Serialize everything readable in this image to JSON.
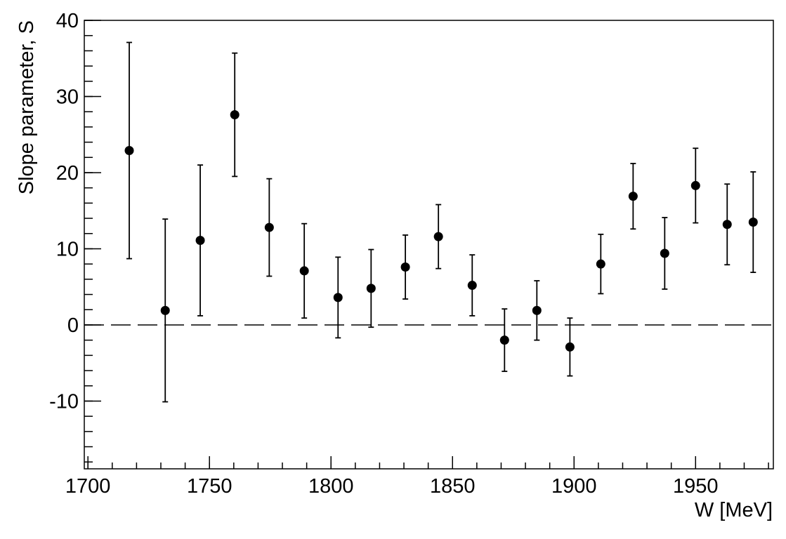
{
  "chart_data": {
    "type": "scatter",
    "x_label": "W [MeV]",
    "y_label": "Slope parameter, S",
    "x": [
      1717,
      1731.8,
      1746.2,
      1760.4,
      1774.6,
      1789,
      1802.9,
      1816.5,
      1830.6,
      1844.2,
      1858.1,
      1871.4,
      1884.7,
      1898.3,
      1911,
      1924.3,
      1937.3,
      1950,
      1963,
      1973.7
    ],
    "values": [
      22.9,
      1.9,
      11.1,
      27.6,
      12.8,
      7.1,
      3.6,
      4.8,
      7.6,
      11.6,
      5.2,
      -2.0,
      1.9,
      -2.9,
      8.0,
      16.9,
      9.4,
      18.3,
      13.2,
      13.5
    ],
    "errors": [
      14.2,
      12,
      9.9,
      8.1,
      6.4,
      6.2,
      5.3,
      5.1,
      4.2,
      4.2,
      4.0,
      4.1,
      3.9,
      3.8,
      3.9,
      4.3,
      4.7,
      4.9,
      5.3,
      6.6
    ],
    "color": "#000000",
    "reference_line": 0,
    "xlim": [
      1698.5,
      1982
    ],
    "ylim": [
      -18.9,
      40
    ],
    "xticks": [
      1700,
      1750,
      1800,
      1850,
      1900,
      1950
    ],
    "yticks": [
      -10,
      0,
      10,
      20,
      30,
      40
    ],
    "grid": false
  }
}
